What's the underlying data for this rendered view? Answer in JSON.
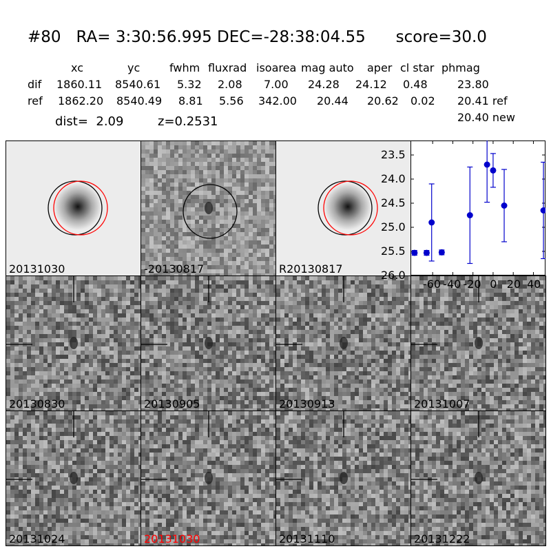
{
  "header": {
    "title": "#80   RA= 3:30:56.995 DEC=-28:38:04.55      score=30.0",
    "columns": [
      "xc",
      "yc",
      "fwhm",
      "fluxrad",
      "isoarea",
      "mag auto",
      "aper",
      "cl star",
      "phmag"
    ],
    "rows": [
      {
        "label": "dif",
        "values": [
          "1860.11",
          "8540.61",
          "5.32",
          "2.08",
          "7.00",
          "24.28",
          "24.12",
          "0.48",
          "23.80"
        ]
      },
      {
        "label": "ref",
        "values": [
          "1862.20",
          "8540.49",
          "8.81",
          "5.56",
          "342.00",
          "20.44",
          "20.62",
          "0.02",
          "20.41 ref"
        ]
      }
    ],
    "extra_phmag": "20.40 new",
    "dist": "dist=  2.09",
    "z": "z=0.2531"
  },
  "panels": [
    {
      "label": "20131030",
      "style": "ref"
    },
    {
      "label": "-20130817",
      "style": "diff"
    },
    {
      "label": "R20130817",
      "style": "ref"
    },
    {
      "label": "20130830",
      "style": "noise"
    },
    {
      "label": "20130905",
      "style": "noise"
    },
    {
      "label": "20130913",
      "style": "noise"
    },
    {
      "label": "20131007",
      "style": "noise"
    },
    {
      "label": "20131024",
      "style": "noise"
    },
    {
      "label": "20131030",
      "style": "noise",
      "label_color": "#ff0000"
    },
    {
      "label": "20131110",
      "style": "noise"
    },
    {
      "label": "20131222",
      "style": "noise"
    }
  ],
  "chart_data": {
    "type": "scatter",
    "title": "",
    "xlabel": "",
    "ylabel": "",
    "xlim": [
      -82,
      52
    ],
    "ylim": [
      26.0,
      23.2
    ],
    "y_inverted": true,
    "xticks": [
      "-60",
      "-40",
      "-20",
      "0",
      "20",
      "40"
    ],
    "xtick_values": [
      -60,
      -40,
      -20,
      0,
      20,
      40
    ],
    "yticks": [
      "23.5",
      "24.0",
      "24.5",
      "25.0",
      "25.5",
      "26.0"
    ],
    "ytick_values": [
      23.5,
      24.0,
      24.5,
      25.0,
      25.5,
      26.0
    ],
    "marker_color": "#0000cc",
    "points": [
      {
        "x": -78,
        "y": 25.53,
        "err": 0.05
      },
      {
        "x": -66,
        "y": 25.53,
        "err": 0.05
      },
      {
        "x": -61,
        "y": 24.9,
        "err": 0.8
      },
      {
        "x": -51,
        "y": 25.52,
        "err": 0.05
      },
      {
        "x": -23,
        "y": 24.75,
        "err": 1.0
      },
      {
        "x": -6,
        "y": 23.7,
        "err": 0.78
      },
      {
        "x": 0,
        "y": 23.82,
        "err": 0.35
      },
      {
        "x": 11,
        "y": 24.55,
        "err": 0.75
      },
      {
        "x": 50,
        "y": 24.65,
        "err": 1.0
      }
    ]
  }
}
